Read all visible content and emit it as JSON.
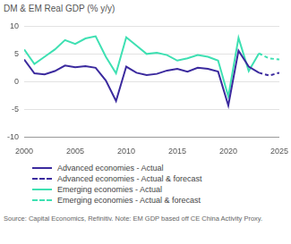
{
  "chart_data": {
    "type": "line",
    "title": "DM & EM Real GDP (% y/y)",
    "source": "Source: Capital Economics, Refinitiv. Note: EM GDP based off CE China Activity Proxy.",
    "x": [
      2000,
      2001,
      2002,
      2003,
      2004,
      2005,
      2006,
      2007,
      2008,
      2009,
      2010,
      2011,
      2012,
      2013,
      2014,
      2015,
      2016,
      2017,
      2018,
      2019,
      2020,
      2021,
      2022,
      2023,
      2024,
      2025
    ],
    "series": [
      {
        "name": "Advanced economies - Actual",
        "color": "#3b2a9e",
        "line_style": "solid",
        "values": [
          4.0,
          1.5,
          1.3,
          1.9,
          2.9,
          2.6,
          2.8,
          2.5,
          0.2,
          -3.5,
          2.7,
          1.6,
          1.2,
          1.4,
          2.0,
          2.3,
          1.8,
          2.5,
          2.3,
          1.8,
          -4.3,
          5.6,
          2.7,
          1.6,
          null,
          null
        ]
      },
      {
        "name": "Advanced economies - Actual & forecast",
        "color": "#3b2a9e",
        "line_style": "dashed",
        "values": [
          null,
          null,
          null,
          null,
          null,
          null,
          null,
          null,
          null,
          null,
          null,
          null,
          null,
          null,
          null,
          null,
          null,
          null,
          null,
          null,
          null,
          null,
          null,
          1.6,
          1.1,
          1.6
        ]
      },
      {
        "name": "Emerging economies - Actual",
        "color": "#3ee0b2",
        "line_style": "solid",
        "values": [
          5.8,
          3.2,
          4.5,
          5.8,
          7.5,
          6.8,
          7.8,
          8.2,
          4.5,
          1.5,
          8.0,
          6.5,
          5.0,
          5.2,
          4.8,
          3.8,
          4.2,
          4.8,
          4.5,
          3.8,
          -2.7,
          7.9,
          1.9,
          5.1,
          null,
          null
        ]
      },
      {
        "name": "Emerging economies - Actual & forecast",
        "color": "#3ee0b2",
        "line_style": "dashed",
        "values": [
          null,
          null,
          null,
          null,
          null,
          null,
          null,
          null,
          null,
          null,
          null,
          null,
          null,
          null,
          null,
          null,
          null,
          null,
          null,
          null,
          null,
          null,
          null,
          5.1,
          4.2,
          4.0
        ]
      }
    ],
    "xlim": [
      2000,
      2025
    ],
    "xticks": [
      2000,
      2005,
      2010,
      2015,
      2020,
      2025
    ],
    "ylim": [
      -10,
      10
    ],
    "yticks": [
      -10,
      -5,
      0,
      5,
      10
    ],
    "grid": true,
    "legend": "bottom"
  }
}
